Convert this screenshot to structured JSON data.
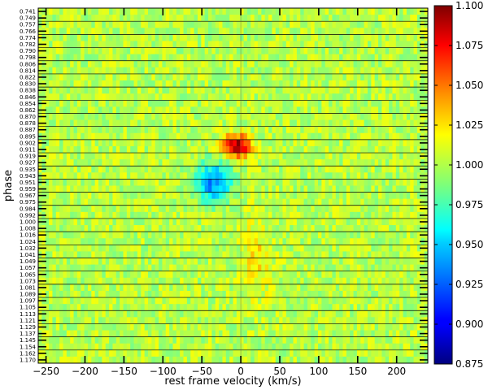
{
  "chart_data": {
    "type": "heatmap",
    "title": "",
    "xlabel": "rest frame velocity (km/s)",
    "ylabel": "phase",
    "xlim": [
      -260,
      240
    ],
    "xticks": [
      -250,
      -200,
      -150,
      -100,
      -50,
      0,
      50,
      100,
      150,
      200
    ],
    "grid": false,
    "phases": [
      "0.741",
      "0.749",
      "0.757",
      "0.766",
      "0.774",
      "0.782",
      "0.790",
      "0.798",
      "0.806",
      "0.814",
      "0.822",
      "0.830",
      "0.838",
      "0.846",
      "0.854",
      "0.862",
      "0.870",
      "0.878",
      "0.887",
      "0.895",
      "0.902",
      "0.911",
      "0.919",
      "0.927",
      "0.935",
      "0.943",
      "0.951",
      "0.959",
      "0.967",
      "0.975",
      "0.984",
      "0.992",
      "1.000",
      "1.008",
      "1.016",
      "1.024",
      "1.032",
      "1.041",
      "1.049",
      "1.057",
      "1.065",
      "1.073",
      "1.081",
      "1.089",
      "1.097",
      "1.105",
      "1.113",
      "1.121",
      "1.129",
      "1.137",
      "1.145",
      "1.154",
      "1.162",
      "1.170"
    ],
    "colorbar": {
      "colormap": "jet",
      "range": [
        0.875,
        1.1
      ],
      "ticks": [
        "0.875",
        "0.900",
        "0.925",
        "0.950",
        "0.975",
        "1.000",
        "1.025",
        "1.050",
        "1.075",
        "1.100"
      ]
    },
    "background_level": 1.0,
    "features": [
      {
        "description": "emission",
        "phase_range": [
          0.895,
          0.919
        ],
        "velocity_range": [
          -25,
          15
        ],
        "peak": 1.1
      },
      {
        "description": "absorption",
        "phase_range": [
          0.927,
          0.975
        ],
        "velocity_range": [
          -60,
          -10
        ],
        "peak": 0.93
      },
      {
        "description": "enhancement",
        "phase_range": [
          0.984,
          1.105
        ],
        "velocity_range": [
          0,
          40
        ],
        "peak": 1.02
      }
    ]
  }
}
